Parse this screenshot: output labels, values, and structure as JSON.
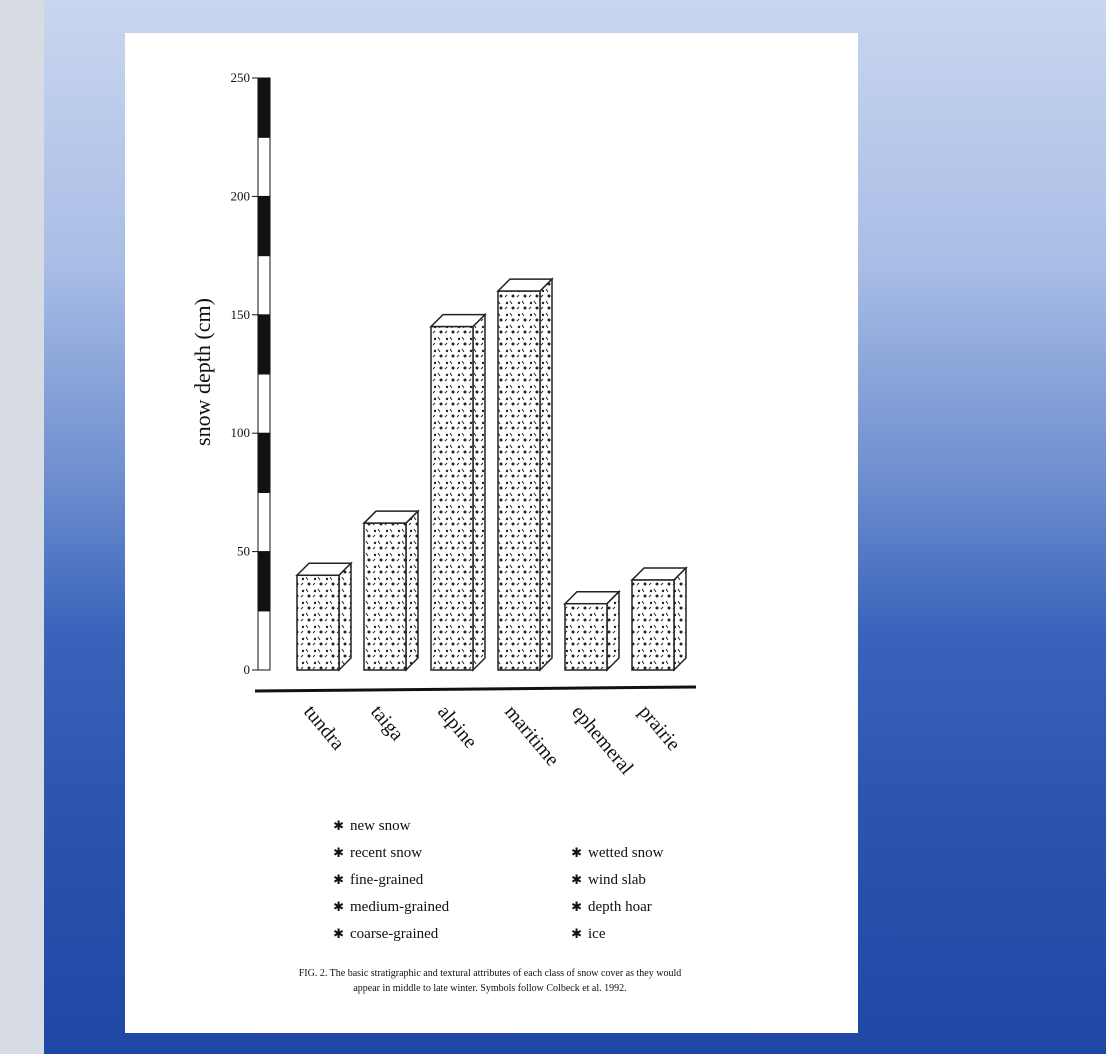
{
  "chart_data": {
    "type": "bar",
    "y_label": "snow depth (cm)",
    "categories": [
      "tundra",
      "taiga",
      "alpine",
      "maritime",
      "ephemeral",
      "prairie"
    ],
    "values": [
      40,
      62,
      145,
      160,
      28,
      38
    ],
    "color": "#222222",
    "ylim": [
      0,
      250
    ],
    "yticks": [
      0,
      50,
      100,
      150,
      200,
      250
    ],
    "symbol_key": [
      "new snow",
      "recent snow",
      "fine-grained",
      "medium-grained",
      "coarse-grained",
      "wetted snow",
      "wind slab",
      "depth hoar",
      "ice"
    ],
    "caption": [
      "FIG. 2. The basic stratigraphic and textural attributes of each class of snow cover as they would",
      "appear in middle to late winter. Symbols follow Colbeck et al. 1992."
    ]
  }
}
